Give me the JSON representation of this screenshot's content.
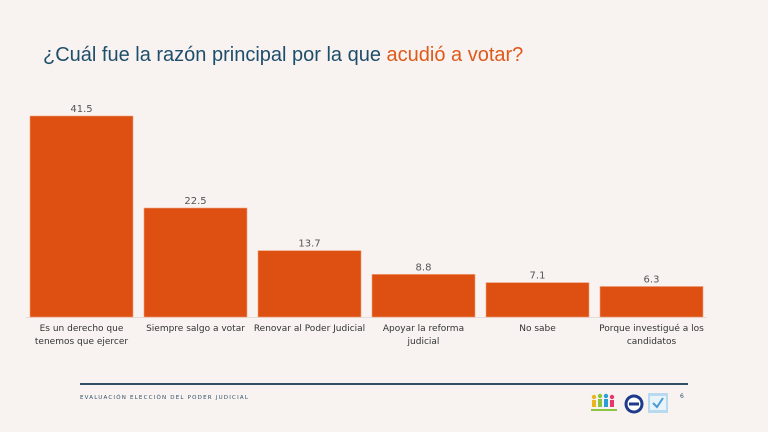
{
  "title": {
    "prefix": "¿Cuál fue la razón principal por la que ",
    "highlight": "acudió a votar?"
  },
  "colors": {
    "bar": "#dd5011",
    "title": "#1f4e6b",
    "accent": "#dd5a1a"
  },
  "chart_data": {
    "type": "bar",
    "title": "¿Cuál fue la razón principal por la que acudió a votar?",
    "categories": [
      "Es un derecho que tenemos que ejercer",
      "Siempre salgo a votar",
      "Renovar al Poder Judicial",
      "Apoyar la reforma judicial",
      "No sabe",
      "Porque investigué a los candidatos"
    ],
    "values": [
      41.5,
      22.5,
      13.7,
      8.8,
      7.1,
      6.3
    ],
    "labels": [
      "41.5",
      "22.5",
      "13.7",
      "8.8",
      "7.1",
      "6.3"
    ],
    "xlabel": "",
    "ylabel": "",
    "ylim": [
      0,
      41.5
    ],
    "grid": false,
    "legend": "none"
  },
  "footer": {
    "text": "EVALUACIÓN ELECCIÓN DEL PODER JUDICIAL",
    "page": "6"
  }
}
